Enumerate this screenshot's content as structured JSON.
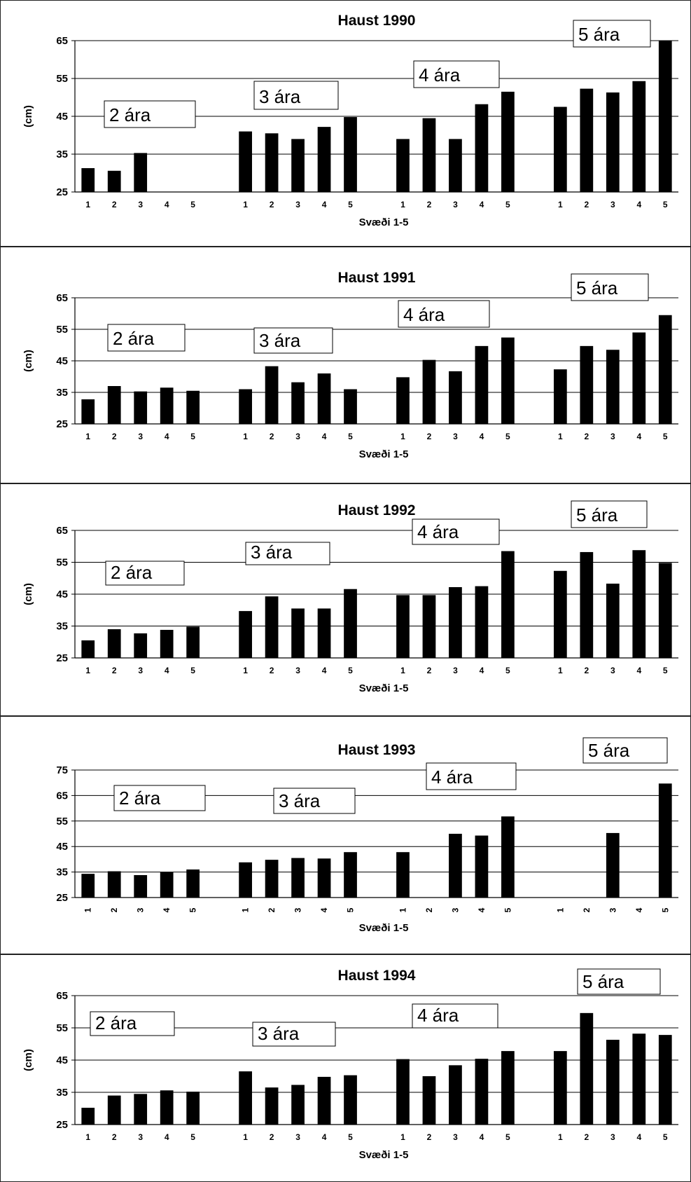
{
  "chart_data": [
    {
      "type": "bar",
      "title": "Haust 1990",
      "xlabel": "Svæði 1-5",
      "ylabel": "(cm)",
      "ylim": [
        25,
        65
      ],
      "yticks": [
        25,
        35,
        45,
        55,
        65
      ],
      "grid": true,
      "group_labels": [
        "2 ára",
        "3 ára",
        "4 ára",
        "5 ára"
      ],
      "categories": [
        "1",
        "2",
        "3",
        "4",
        "5"
      ],
      "series": [
        {
          "values": [
            31.3,
            30.6,
            35.3,
            null,
            null
          ]
        },
        {
          "values": [
            41.0,
            40.5,
            39.0,
            42.2,
            44.8
          ]
        },
        {
          "values": [
            39.0,
            44.5,
            39.0,
            48.2,
            51.5
          ]
        },
        {
          "values": [
            47.5,
            52.3,
            51.3,
            54.3,
            65.0
          ]
        }
      ]
    },
    {
      "type": "bar",
      "title": "Haust 1991",
      "xlabel": "Svæði 1-5",
      "ylabel": "(cm)",
      "ylim": [
        25,
        65
      ],
      "yticks": [
        25,
        35,
        45,
        55,
        65
      ],
      "grid": true,
      "group_labels": [
        "2 ára",
        "3 ára",
        "4 ára",
        "5 ára"
      ],
      "categories": [
        "1",
        "2",
        "3",
        "4",
        "5"
      ],
      "series": [
        {
          "values": [
            32.8,
            37.0,
            35.3,
            36.5,
            35.5
          ]
        },
        {
          "values": [
            36.0,
            43.3,
            38.2,
            41.0,
            36.0
          ]
        },
        {
          "values": [
            39.8,
            45.3,
            41.7,
            49.7,
            52.4
          ]
        },
        {
          "values": [
            42.3,
            49.7,
            48.5,
            54.0,
            59.5
          ]
        }
      ]
    },
    {
      "type": "bar",
      "title": "Haust 1992",
      "xlabel": "Svæði 1-5",
      "ylabel": "(cm)",
      "ylim": [
        25,
        65
      ],
      "yticks": [
        25,
        35,
        45,
        55,
        65
      ],
      "grid": true,
      "group_labels": [
        "2 ára",
        "3 ára",
        "4 ára",
        "5 ára"
      ],
      "categories": [
        "1",
        "2",
        "3",
        "4",
        "5"
      ],
      "series": [
        {
          "values": [
            30.5,
            34.0,
            32.7,
            33.8,
            34.8
          ]
        },
        {
          "values": [
            39.7,
            44.3,
            40.5,
            40.5,
            46.6
          ]
        },
        {
          "values": [
            44.7,
            44.7,
            47.2,
            47.5,
            58.5
          ]
        },
        {
          "values": [
            52.3,
            58.2,
            48.3,
            58.8,
            54.8
          ]
        }
      ]
    },
    {
      "type": "bar",
      "title": "Haust 1993",
      "xlabel": "Svæði 1-5",
      "ylabel": "",
      "ylim": [
        25,
        75
      ],
      "yticks": [
        25,
        35,
        45,
        55,
        65,
        75
      ],
      "grid": true,
      "group_labels": [
        "2 ára",
        "3 ára",
        "4 ára",
        "5 ára"
      ],
      "categories": [
        "1",
        "2",
        "3",
        "4",
        "5"
      ],
      "series": [
        {
          "values": [
            34.3,
            35.3,
            33.8,
            34.9,
            36.0
          ]
        },
        {
          "values": [
            38.8,
            39.8,
            40.5,
            40.3,
            42.8
          ]
        },
        {
          "values": [
            42.8,
            null,
            50.0,
            49.3,
            56.8
          ]
        },
        {
          "values": [
            null,
            null,
            50.3,
            null,
            69.7
          ]
        }
      ]
    },
    {
      "type": "bar",
      "title": "Haust 1994",
      "xlabel": "Svæði 1-5",
      "ylabel": "(cm)",
      "ylim": [
        25,
        65
      ],
      "yticks": [
        25,
        35,
        45,
        55,
        65
      ],
      "grid": true,
      "group_labels": [
        "2 ára",
        "3 ára",
        "4 ára",
        "5 ára"
      ],
      "categories": [
        "1",
        "2",
        "3",
        "4",
        "5"
      ],
      "series": [
        {
          "values": [
            30.2,
            34.0,
            34.5,
            35.6,
            35.2
          ]
        },
        {
          "values": [
            41.5,
            36.5,
            37.3,
            39.8,
            40.3
          ]
        },
        {
          "values": [
            45.3,
            40.0,
            43.4,
            45.4,
            47.8
          ]
        },
        {
          "values": [
            47.8,
            59.6,
            51.3,
            53.2,
            52.8
          ]
        }
      ]
    }
  ]
}
